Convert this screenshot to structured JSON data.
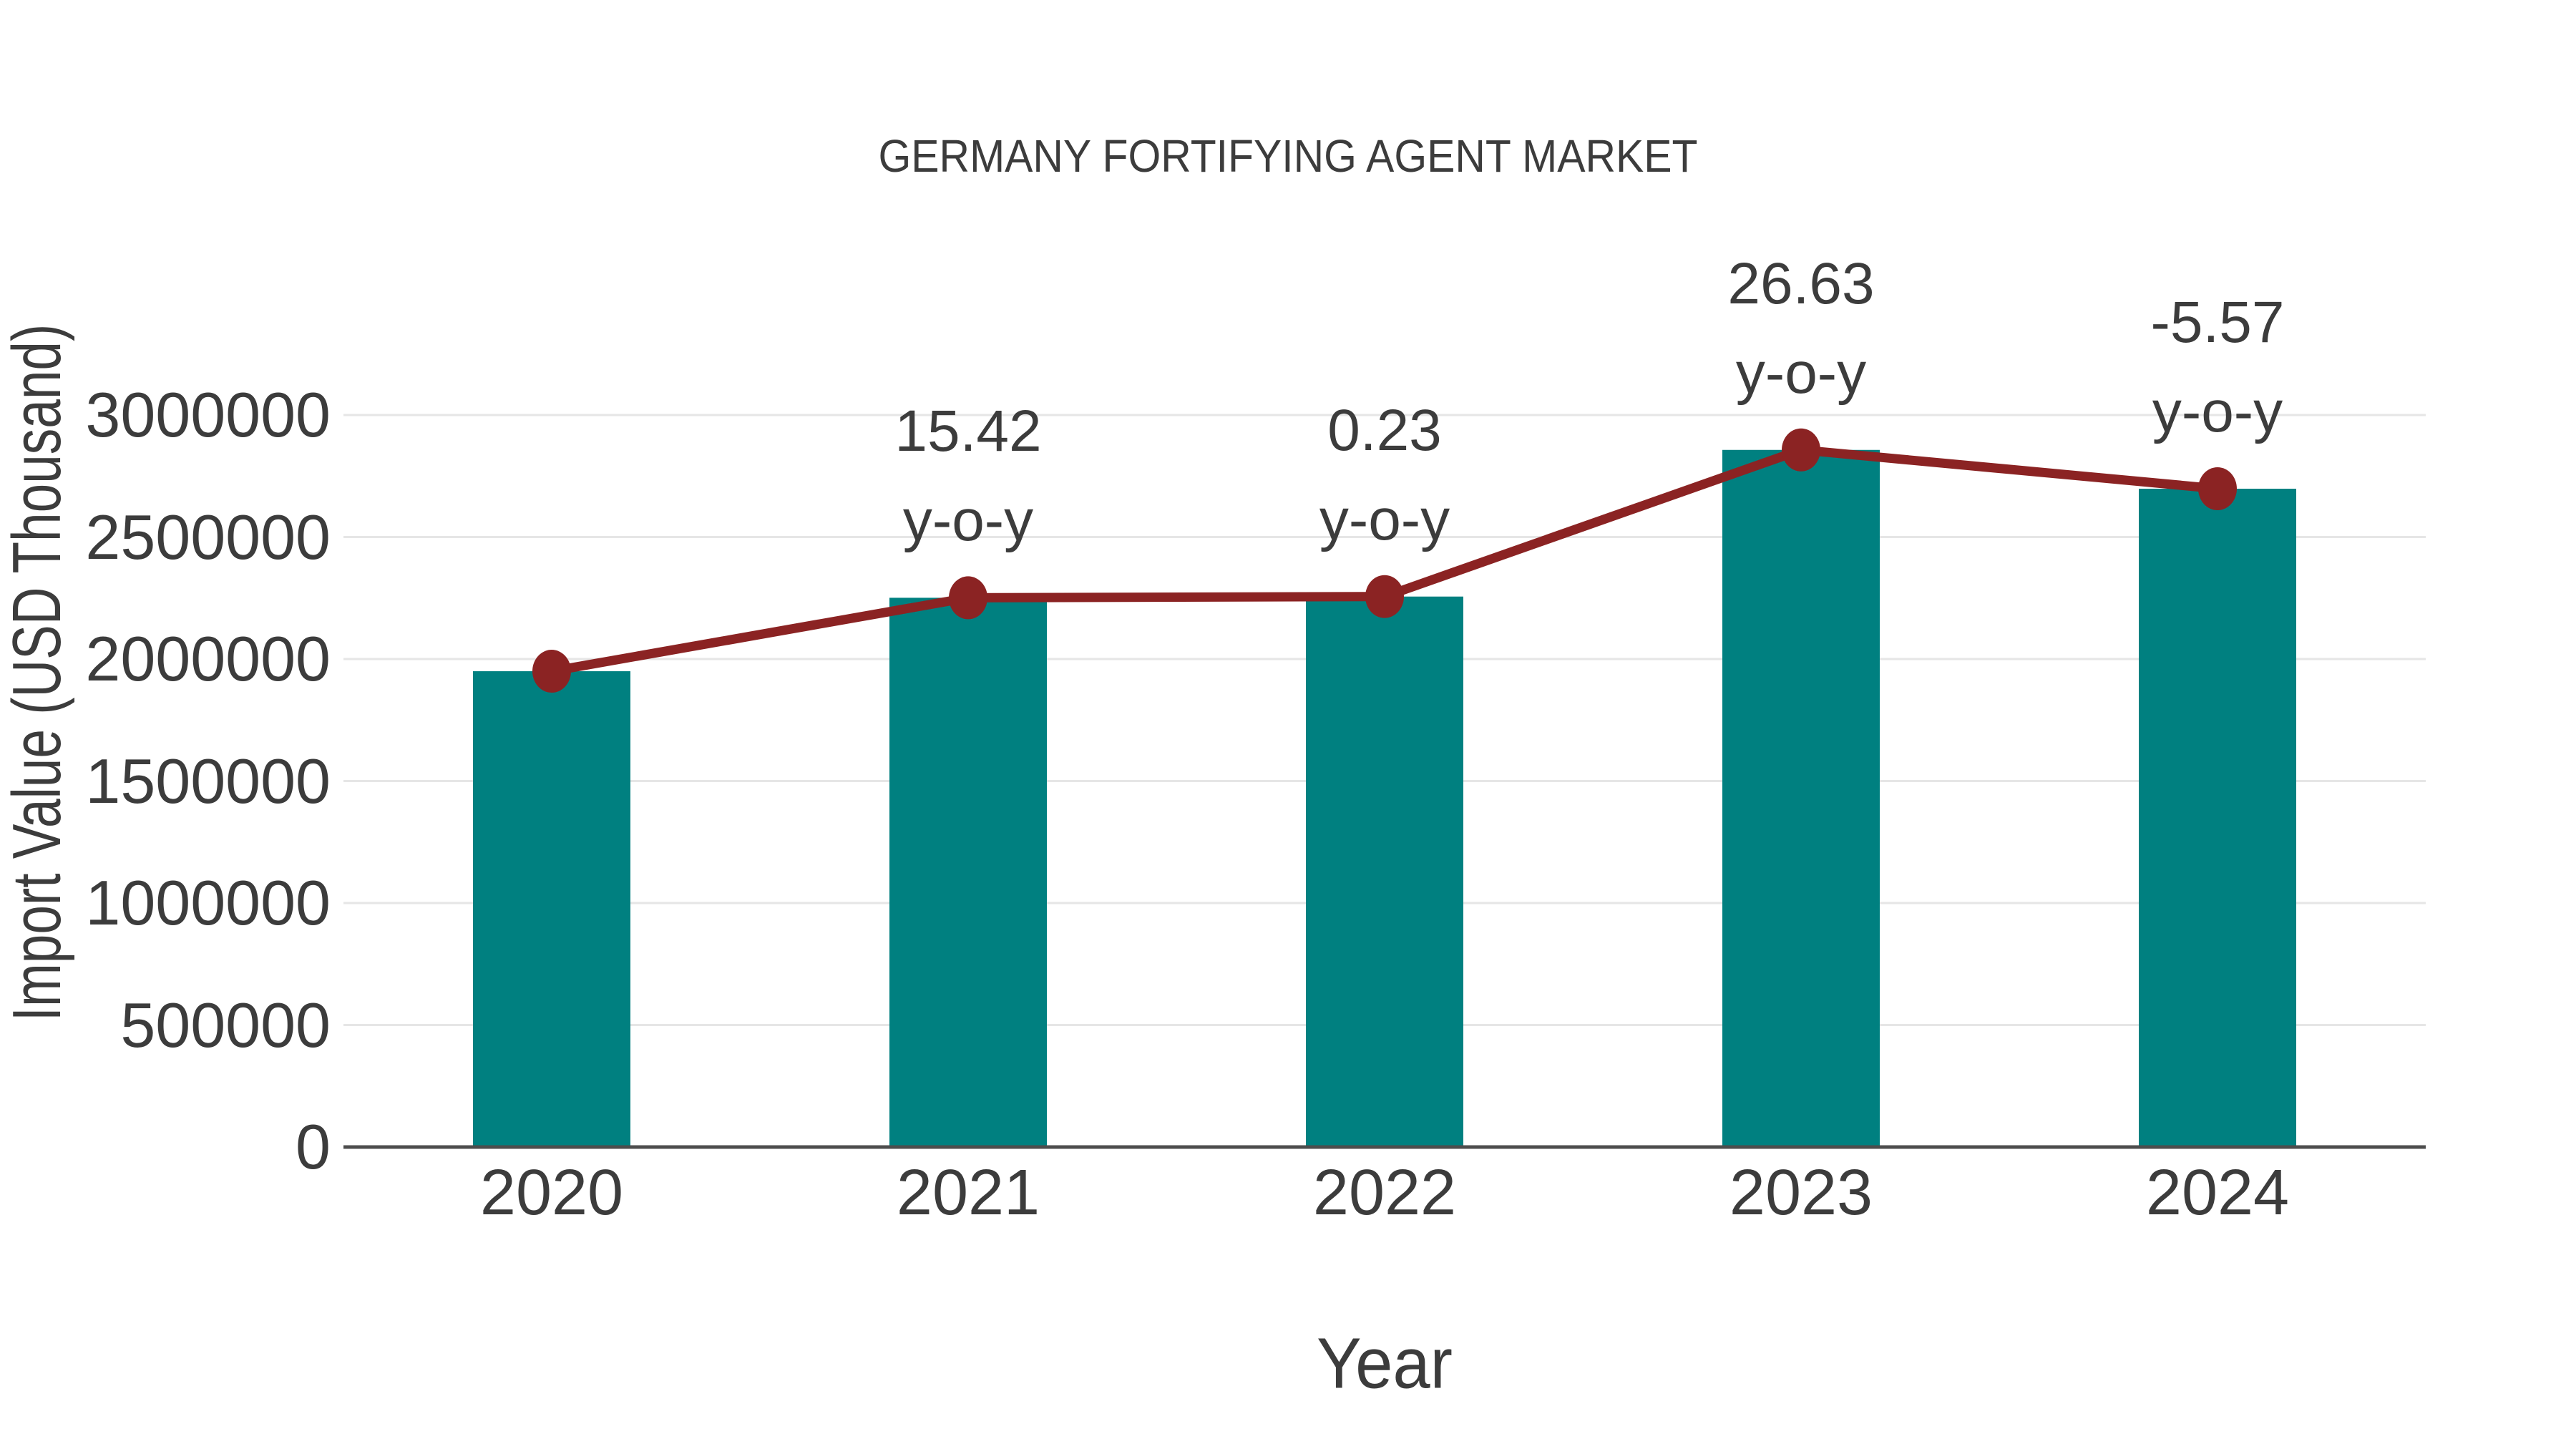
{
  "title": "GERMANY FORTIFYING AGENT MARKET",
  "colors": {
    "background": "#FFFFFF",
    "bar": "#008080",
    "line": "#8B2323",
    "marker": "#8B2323",
    "text": "#3C3C3C",
    "grid": "#E6E6E6",
    "axis": "#4D4D4D"
  },
  "chart_data": {
    "type": "bar",
    "title": "GERMANY FORTIFYING AGENT MARKET",
    "xlabel": "Year",
    "ylabel": "Import Value (USD Thousand)",
    "categories": [
      "2020",
      "2021",
      "2022",
      "2023",
      "2024"
    ],
    "series": [
      {
        "name": "Import Value (USD Thousand)",
        "type": "bar",
        "color": "#008080",
        "values": [
          1950000,
          2251000,
          2256000,
          2857000,
          2698000
        ]
      },
      {
        "name": "y-o-y trend line",
        "type": "line",
        "color": "#8B2323",
        "values": [
          1950000,
          2251000,
          2256000,
          2857000,
          2698000
        ]
      }
    ],
    "annotations": [
      {
        "category": "2021",
        "value": "15.42",
        "label": "y-o-y"
      },
      {
        "category": "2022",
        "value": "0.23",
        "label": "y-o-y"
      },
      {
        "category": "2023",
        "value": "26.63",
        "label": "y-o-y"
      },
      {
        "category": "2024",
        "value": "-5.57",
        "label": "y-o-y"
      }
    ],
    "ylim": [
      0,
      3000000
    ],
    "yticks": [
      0,
      500000,
      1000000,
      1500000,
      2000000,
      2500000,
      3000000
    ],
    "grid": "horizontal-light",
    "legend": "none"
  }
}
